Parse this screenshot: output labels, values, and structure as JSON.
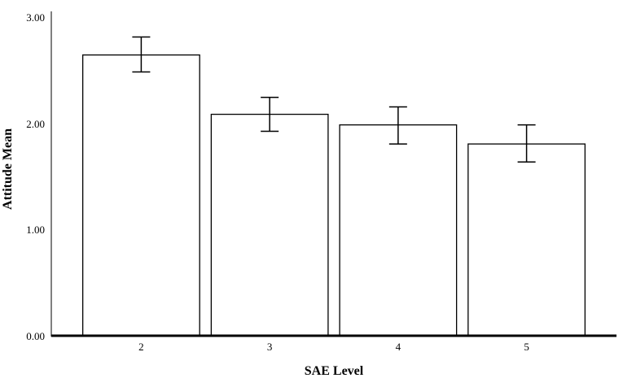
{
  "chart_data": {
    "type": "bar",
    "title": "",
    "xlabel": "SAE Level",
    "ylabel": "Attitude Mean",
    "categories": [
      "2",
      "3",
      "4",
      "5"
    ],
    "values": [
      2.65,
      2.09,
      1.99,
      1.81
    ],
    "error_bars": {
      "lower": [
        2.49,
        1.93,
        1.81,
        1.64
      ],
      "upper": [
        2.82,
        2.25,
        2.16,
        1.99
      ]
    },
    "ylim": [
      0,
      3
    ],
    "y_ticks": [
      "0.00",
      "1.00",
      "2.00",
      "3.00"
    ],
    "grid": false,
    "legend": "none",
    "colors": {
      "bar_fill": "#ffffff",
      "bar_stroke": "#000000",
      "axis": "#000000"
    }
  }
}
